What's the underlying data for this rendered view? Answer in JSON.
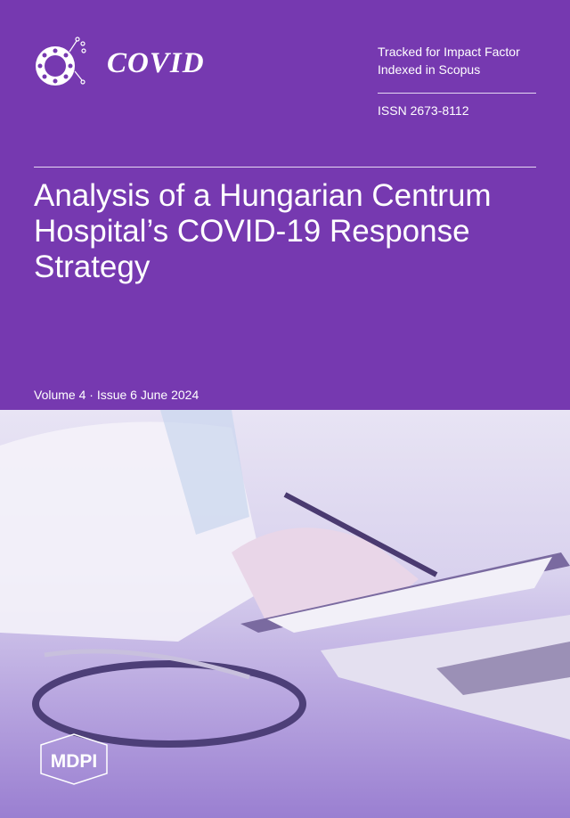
{
  "journal": {
    "name": "COVID",
    "logo_icon": "virus-icon"
  },
  "badges": {
    "line1": "Tracked for Impact Factor",
    "line2": "Indexed in Scopus"
  },
  "issn": "ISSN 2673-8112",
  "article_title": "Analysis of a Hungarian Centrum Hospital’s COVID-19 Response Strategy",
  "issue": "Volume 4 · Issue 6 June 2024",
  "publisher": "MDPI",
  "colors": {
    "brand": "#7639b0"
  }
}
